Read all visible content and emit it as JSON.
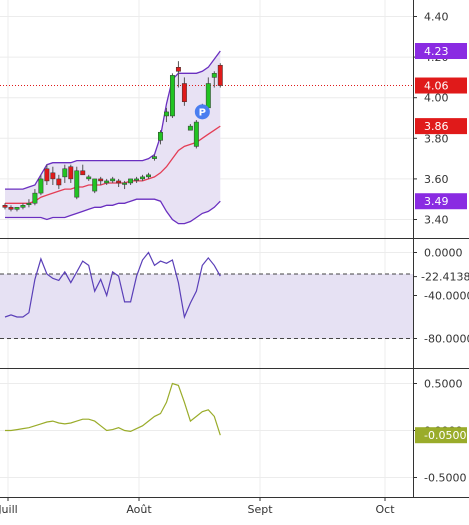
{
  "colors": {
    "up": "#22c322",
    "down": "#e01a1a",
    "band": "#6a2fc0",
    "band_fill": "#e8e2f4",
    "ma": "#e43d55",
    "rsi": "#5a3fb8",
    "rsi_zone": "#e6e1f3",
    "osc": "#9aac2a",
    "price_badge": "#e01a1a",
    "band_badge": "#8a2be2",
    "grid": "#ececec"
  },
  "chart_data": [
    {
      "type": "candlestick",
      "x": [
        "Juill",
        "Août",
        "Sept",
        "Oct"
      ],
      "x_ticks": [
        "Juill",
        "Août",
        "Sept",
        "Oct"
      ],
      "ylim": [
        3.32,
        4.48
      ],
      "y_ticks": [
        "4.40",
        "4.20",
        "4.00",
        "3.80",
        "3.60",
        "3.40"
      ],
      "y_tick_values": [
        4.4,
        4.2,
        4.0,
        3.8,
        3.6,
        3.4
      ],
      "grid": true,
      "last_price_label": "4.06",
      "last_price": 4.06,
      "upper_band_label": "4.23",
      "upper_band_last": 4.23,
      "lower_band_label": "3.49",
      "lower_band_last": 3.49,
      "ma_label": "3.86",
      "ma_last": 3.86,
      "marker_label": "P",
      "candles": [
        {
          "day": 0,
          "o": 3.47,
          "h": 3.48,
          "l": 3.45,
          "c": 3.46
        },
        {
          "day": 1,
          "o": 3.46,
          "h": 3.47,
          "l": 3.44,
          "c": 3.45
        },
        {
          "day": 2,
          "o": 3.45,
          "h": 3.46,
          "l": 3.44,
          "c": 3.46
        },
        {
          "day": 3,
          "o": 3.46,
          "h": 3.48,
          "l": 3.45,
          "c": 3.47
        },
        {
          "day": 4,
          "o": 3.48,
          "h": 3.5,
          "l": 3.46,
          "c": 3.48
        },
        {
          "day": 5,
          "o": 3.48,
          "h": 3.55,
          "l": 3.47,
          "c": 3.53
        },
        {
          "day": 6,
          "o": 3.53,
          "h": 3.62,
          "l": 3.52,
          "c": 3.6
        },
        {
          "day": 7,
          "o": 3.65,
          "h": 3.67,
          "l": 3.57,
          "c": 3.59
        },
        {
          "day": 8,
          "o": 3.63,
          "h": 3.66,
          "l": 3.57,
          "c": 3.6
        },
        {
          "day": 9,
          "o": 3.6,
          "h": 3.62,
          "l": 3.55,
          "c": 3.57
        },
        {
          "day": 10,
          "o": 3.61,
          "h": 3.67,
          "l": 3.58,
          "c": 3.65
        },
        {
          "day": 11,
          "o": 3.66,
          "h": 3.67,
          "l": 3.58,
          "c": 3.6
        },
        {
          "day": 12,
          "o": 3.51,
          "h": 3.66,
          "l": 3.5,
          "c": 3.64
        },
        {
          "day": 13,
          "o": 3.64,
          "h": 3.67,
          "l": 3.62,
          "c": 3.62
        },
        {
          "day": 14,
          "o": 3.6,
          "h": 3.62,
          "l": 3.59,
          "c": 3.61
        },
        {
          "day": 15,
          "o": 3.54,
          "h": 3.6,
          "l": 3.53,
          "c": 3.6
        },
        {
          "day": 16,
          "o": 3.6,
          "h": 3.61,
          "l": 3.57,
          "c": 3.59
        },
        {
          "day": 17,
          "o": 3.58,
          "h": 3.6,
          "l": 3.57,
          "c": 3.59
        },
        {
          "day": 18,
          "o": 3.59,
          "h": 3.61,
          "l": 3.58,
          "c": 3.6
        },
        {
          "day": 19,
          "o": 3.59,
          "h": 3.6,
          "l": 3.56,
          "c": 3.58
        },
        {
          "day": 20,
          "o": 3.58,
          "h": 3.59,
          "l": 3.55,
          "c": 3.58
        },
        {
          "day": 21,
          "o": 3.58,
          "h": 3.6,
          "l": 3.57,
          "c": 3.6
        },
        {
          "day": 22,
          "o": 3.6,
          "h": 3.61,
          "l": 3.58,
          "c": 3.6
        },
        {
          "day": 23,
          "o": 3.6,
          "h": 3.62,
          "l": 3.59,
          "c": 3.61
        },
        {
          "day": 24,
          "o": 3.61,
          "h": 3.63,
          "l": 3.6,
          "c": 3.62
        },
        {
          "day": 25,
          "o": 3.7,
          "h": 3.72,
          "l": 3.69,
          "c": 3.71
        },
        {
          "day": 26,
          "o": 3.79,
          "h": 3.84,
          "l": 3.77,
          "c": 3.83
        },
        {
          "day": 27,
          "o": 3.91,
          "h": 3.95,
          "l": 3.88,
          "c": 3.93
        },
        {
          "day": 28,
          "o": 3.91,
          "h": 4.12,
          "l": 3.9,
          "c": 4.11
        },
        {
          "day": 29,
          "o": 4.15,
          "h": 4.18,
          "l": 4.05,
          "c": 4.13
        },
        {
          "day": 30,
          "o": 4.07,
          "h": 4.1,
          "l": 3.96,
          "c": 3.98
        },
        {
          "day": 31,
          "o": 3.84,
          "h": 3.87,
          "l": 3.84,
          "c": 3.86
        },
        {
          "day": 32,
          "o": 3.76,
          "h": 3.89,
          "l": 3.75,
          "c": 3.88
        },
        {
          "day": 33,
          "o": 3.92,
          "h": 3.97,
          "l": 3.9,
          "c": 3.95
        },
        {
          "day": 34,
          "o": 3.95,
          "h": 4.1,
          "l": 3.94,
          "c": 4.07
        },
        {
          "day": 35,
          "o": 4.1,
          "h": 4.13,
          "l": 4.05,
          "c": 4.12
        },
        {
          "day": 36,
          "o": 4.16,
          "h": 4.17,
          "l": 4.05,
          "c": 4.06
        }
      ],
      "upper_band": [
        3.55,
        3.55,
        3.55,
        3.55,
        3.56,
        3.57,
        3.62,
        3.67,
        3.68,
        3.68,
        3.68,
        3.68,
        3.69,
        3.69,
        3.69,
        3.69,
        3.69,
        3.69,
        3.69,
        3.69,
        3.69,
        3.69,
        3.69,
        3.69,
        3.7,
        3.72,
        3.81,
        3.97,
        4.09,
        4.12,
        4.12,
        4.12,
        4.12,
        4.13,
        4.15,
        4.19,
        4.23
      ],
      "lower_band": [
        3.41,
        3.41,
        3.41,
        3.41,
        3.41,
        3.41,
        3.41,
        3.4,
        3.41,
        3.41,
        3.41,
        3.42,
        3.43,
        3.44,
        3.45,
        3.46,
        3.46,
        3.47,
        3.47,
        3.48,
        3.48,
        3.49,
        3.5,
        3.5,
        3.5,
        3.5,
        3.49,
        3.44,
        3.4,
        3.38,
        3.38,
        3.39,
        3.41,
        3.43,
        3.44,
        3.46,
        3.49
      ],
      "moving_average": [
        3.48,
        3.48,
        3.48,
        3.48,
        3.48,
        3.49,
        3.51,
        3.52,
        3.53,
        3.54,
        3.55,
        3.55,
        3.56,
        3.56,
        3.57,
        3.57,
        3.57,
        3.58,
        3.58,
        3.58,
        3.58,
        3.59,
        3.59,
        3.59,
        3.6,
        3.61,
        3.63,
        3.66,
        3.7,
        3.74,
        3.76,
        3.77,
        3.78,
        3.8,
        3.82,
        3.84,
        3.86
      ],
      "marker_day": 33,
      "marker_value": 3.95
    },
    {
      "type": "line",
      "ylim": [
        -112,
        8
      ],
      "y_ticks": [
        "0.0000",
        "-40.0000",
        "-80.0000"
      ],
      "y_tick_values": [
        0,
        -40,
        -80
      ],
      "zone": [
        -80,
        -20
      ],
      "last_value_label": "-22.4138",
      "last_value": -22.4138,
      "values": [
        -60,
        -58,
        -60,
        -60,
        -56,
        -25,
        -6,
        -20,
        -24,
        -26,
        -18,
        -28,
        -18,
        -8,
        -12,
        -36,
        -25,
        -40,
        -18,
        -22,
        -46,
        -46,
        -22,
        -7,
        0,
        -12,
        -8,
        -10,
        -7,
        -28,
        -60,
        -47,
        -36,
        -12,
        -5,
        -12,
        -22
      ]
    },
    {
      "type": "line",
      "ylim": [
        -0.5,
        0.6
      ],
      "y_ticks": [
        "0.5000",
        "0.0000",
        "-0.5000"
      ],
      "y_tick_values": [
        0.5,
        0,
        -0.5
      ],
      "last_value_label": "-0.0500",
      "last_value": -0.05,
      "values": [
        0,
        0,
        0.01,
        0.02,
        0.03,
        0.05,
        0.07,
        0.09,
        0.1,
        0.08,
        0.07,
        0.08,
        0.1,
        0.12,
        0.12,
        0.1,
        0.05,
        0,
        0.01,
        0.03,
        0,
        -0.01,
        0.02,
        0.05,
        0.1,
        0.15,
        0.18,
        0.3,
        0.5,
        0.48,
        0.3,
        0.1,
        0.15,
        0.2,
        0.22,
        0.15,
        -0.05
      ]
    }
  ]
}
